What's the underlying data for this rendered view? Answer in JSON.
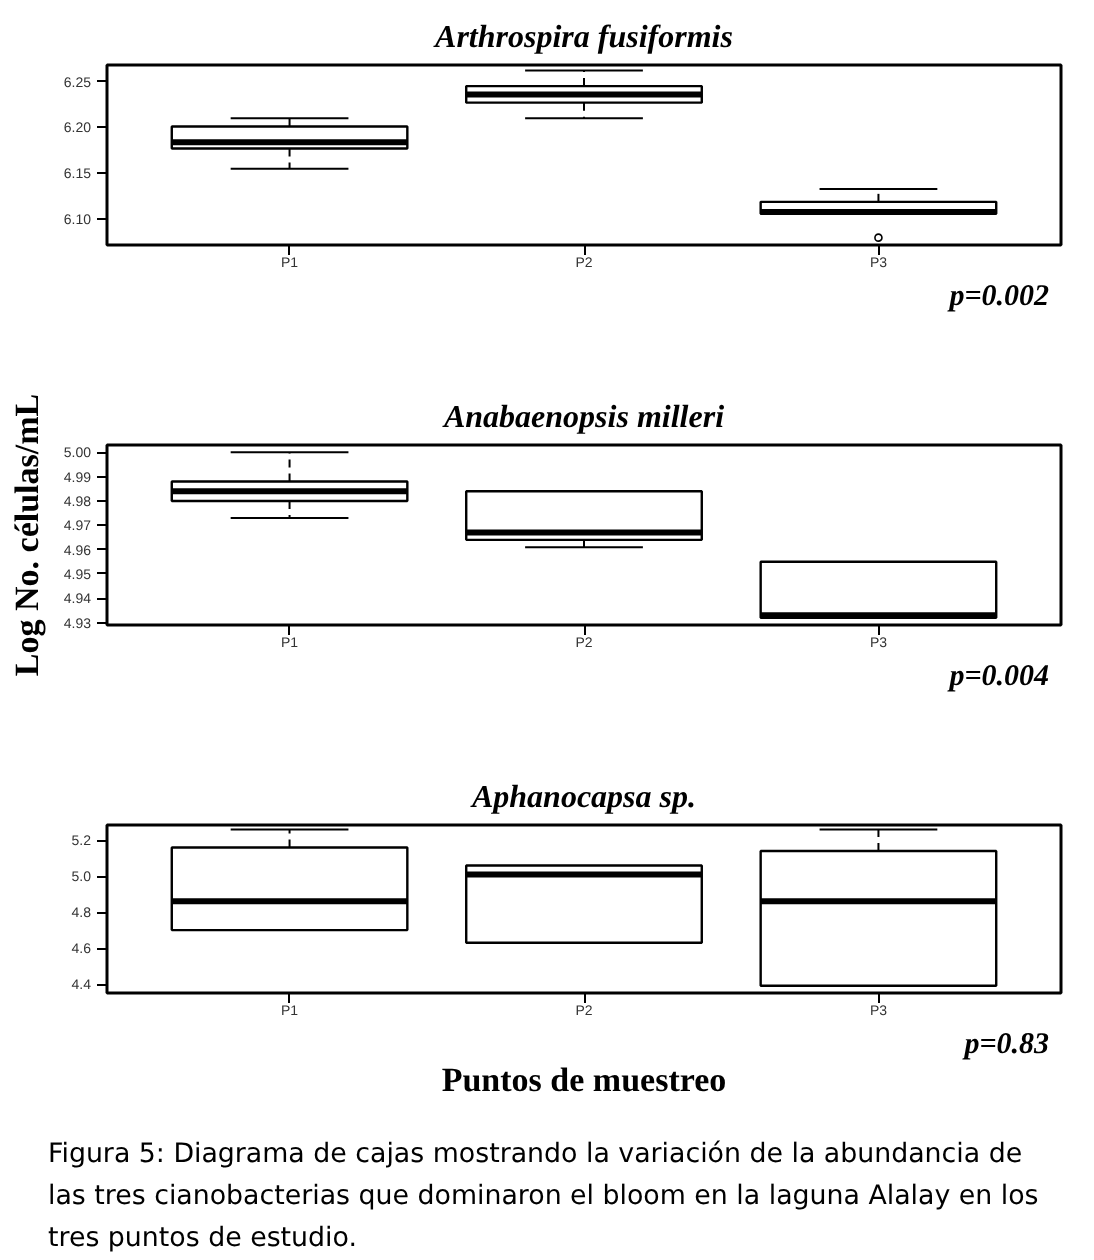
{
  "chart_data": [
    {
      "type": "box",
      "title": "Arthrospira fusiformis",
      "categories": [
        "P1",
        "P2",
        "P3"
      ],
      "boxes": [
        {
          "low": 6.155,
          "q1": 6.177,
          "median": 6.184,
          "q3": 6.201,
          "high": 6.21
        },
        {
          "low": 6.21,
          "q1": 6.227,
          "median": 6.236,
          "q3": 6.245,
          "high": 6.262
        },
        {
          "low": 6.106,
          "q1": 6.106,
          "median": 6.108,
          "q3": 6.119,
          "high": 6.133,
          "outliers": [
            6.08
          ]
        }
      ],
      "ylim": [
        6.072,
        6.268
      ],
      "yticks": [
        {
          "value": 6.1,
          "label": "6.10"
        },
        6.15,
        {
          "value": 6.2,
          "label": "6.20"
        },
        6.25
      ],
      "annotations": [
        "p=0.002"
      ]
    },
    {
      "type": "box",
      "title": "Anabaenopsis milleri",
      "ylabel": "Log No. células/mL",
      "categories": [
        "P1",
        "P2",
        "P3"
      ],
      "boxes": [
        {
          "low": 4.973,
          "q1": 4.98,
          "median": 4.984,
          "q3": 4.988,
          "high": 5.0
        },
        {
          "low": 4.961,
          "q1": 4.964,
          "median": 4.967,
          "q3": 4.984,
          "high": 4.984
        },
        {
          "low": 4.932,
          "q1": 4.932,
          "median": 4.933,
          "q3": 4.955,
          "high": 4.955
        }
      ],
      "ylim": [
        4.929,
        5.003
      ],
      "yticks": [
        4.93,
        4.94,
        4.95,
        4.96,
        4.97,
        4.98,
        4.99,
        {
          "value": 5.0,
          "label": "5.00"
        }
      ],
      "annotations": [
        "p=0.004"
      ]
    },
    {
      "type": "box",
      "title": "Aphanocapsa sp.",
      "xlabel": "Puntos de muestreo",
      "categories": [
        "P1",
        "P2",
        "P3"
      ],
      "boxes": [
        {
          "low": 4.7,
          "q1": 4.7,
          "median": 4.86,
          "q3": 5.16,
          "high": 5.26
        },
        {
          "low": 4.63,
          "q1": 4.63,
          "median": 5.01,
          "q3": 5.06,
          "high": 5.06
        },
        {
          "low": 4.39,
          "q1": 4.39,
          "median": 4.86,
          "q3": 5.14,
          "high": 5.26
        }
      ],
      "ylim": [
        4.35,
        5.285
      ],
      "yticks": [
        4.4,
        4.6,
        4.8,
        {
          "value": 5.0,
          "label": "5.0"
        },
        5.2
      ],
      "annotations": [
        "p=0.83",
        "Figura 5: Diagrama de cajas mostrando la variación de la abundancia de las tres cianobacterias que dominaron el bloom en la laguna Alalay en los tres puntos de estudio."
      ]
    }
  ]
}
